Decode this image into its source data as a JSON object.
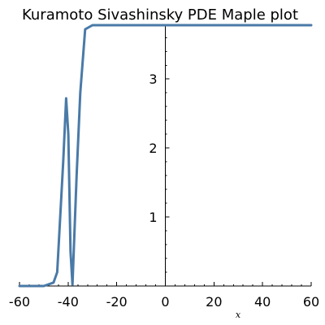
{
  "chart_data": {
    "type": "line",
    "title": "Kuramoto Sivashinsky  PDE  Maple plot",
    "xlabel": "x",
    "ylabel": "",
    "xlim": [
      -60,
      60
    ],
    "ylim": [
      0,
      3.78
    ],
    "x_ticks": [
      -60,
      -40,
      -20,
      0,
      20,
      40,
      60
    ],
    "x_tick_labels": [
      "-60",
      "-40",
      "-20",
      "0",
      "20",
      "40",
      "60"
    ],
    "y_ticks": [
      1,
      2,
      3
    ],
    "y_tick_labels": [
      "1",
      "2",
      "3"
    ],
    "y_minor_step": 0.2,
    "x_minor_step": 4,
    "grid": false,
    "line_color": "#4a7aa7",
    "series": [
      {
        "x": [
          -60,
          -55,
          -50,
          -46,
          -44.5,
          -42,
          -40.8,
          -39.9,
          -39,
          -38.2,
          -36.5,
          -35,
          -33,
          -30,
          -20,
          0,
          20,
          40,
          60
        ],
        "y": [
          0,
          0,
          0,
          0.05,
          0.2,
          1.8,
          2.72,
          2.2,
          0.5,
          0.02,
          1.6,
          2.8,
          3.72,
          3.78,
          3.78,
          3.78,
          3.78,
          3.78,
          3.78
        ]
      }
    ]
  }
}
